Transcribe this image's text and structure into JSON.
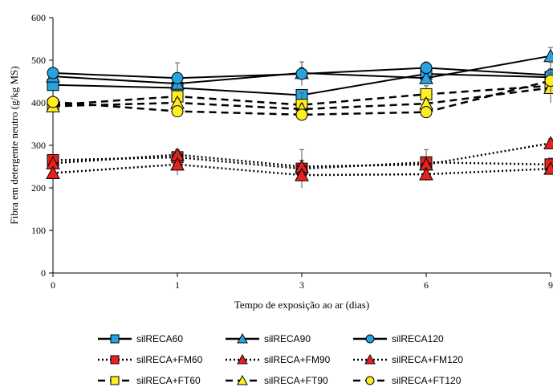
{
  "chart_data": {
    "type": "line",
    "xlabel": "Tempo de exposição ao ar (dias)",
    "ylabel": "Fibra em detergente neutro (g/kg MS)",
    "x_categories": [
      "0",
      "1",
      "3",
      "6",
      "9"
    ],
    "ylim": [
      0,
      600
    ],
    "yticks": [
      0,
      100,
      200,
      300,
      400,
      500,
      600
    ],
    "grid": false,
    "legend_position": "bottom",
    "series": [
      {
        "name": "silRECA60",
        "marker": "square",
        "line": "solid",
        "fill": "#29a3e0",
        "values": [
          442,
          435,
          418,
          468,
          460
        ],
        "errors": [
          8,
          12,
          10,
          10,
          15
        ]
      },
      {
        "name": "silRECA90",
        "marker": "triangle",
        "line": "solid",
        "fill": "#29a3e0",
        "values": [
          462,
          445,
          470,
          458,
          510
        ],
        "errors": [
          10,
          15,
          12,
          12,
          20
        ]
      },
      {
        "name": "silRECA120",
        "marker": "circle",
        "line": "solid",
        "fill": "#29a3e0",
        "values": [
          470,
          458,
          468,
          482,
          465
        ],
        "errors": [
          12,
          36,
          28,
          14,
          30
        ]
      },
      {
        "name": "silRECA+FM60",
        "marker": "square",
        "line": "dotted",
        "fill": "#e8211f",
        "values": [
          265,
          272,
          245,
          260,
          255
        ],
        "errors": [
          8,
          18,
          45,
          30,
          15
        ]
      },
      {
        "name": "silRECA+FM90",
        "marker": "triangle",
        "line": "dotted",
        "fill": "#e8211f",
        "values": [
          258,
          278,
          250,
          255,
          305
        ],
        "errors": [
          10,
          10,
          15,
          15,
          10
        ]
      },
      {
        "name": "silRECA+FM120",
        "marker": "triangle",
        "line": "dotted",
        "fill": "#e8211f",
        "values": [
          235,
          255,
          230,
          232,
          245
        ],
        "errors": [
          8,
          25,
          20,
          15,
          10
        ]
      },
      {
        "name": "silRECA+FT60",
        "marker": "square",
        "line": "dashed",
        "fill": "#ffee22",
        "values": [
          395,
          415,
          395,
          420,
          440
        ],
        "errors": [
          8,
          14,
          28,
          20,
          40
        ]
      },
      {
        "name": "silRECA+FT90",
        "marker": "triangle",
        "line": "dashed",
        "fill": "#ffee22",
        "values": [
          392,
          400,
          385,
          398,
          435
        ],
        "errors": [
          8,
          10,
          12,
          12,
          35
        ]
      },
      {
        "name": "silRECA+FT120",
        "marker": "circle",
        "line": "dashed",
        "fill": "#ffee22",
        "values": [
          402,
          380,
          372,
          378,
          452
        ],
        "errors": [
          8,
          12,
          10,
          12,
          45
        ]
      }
    ]
  }
}
